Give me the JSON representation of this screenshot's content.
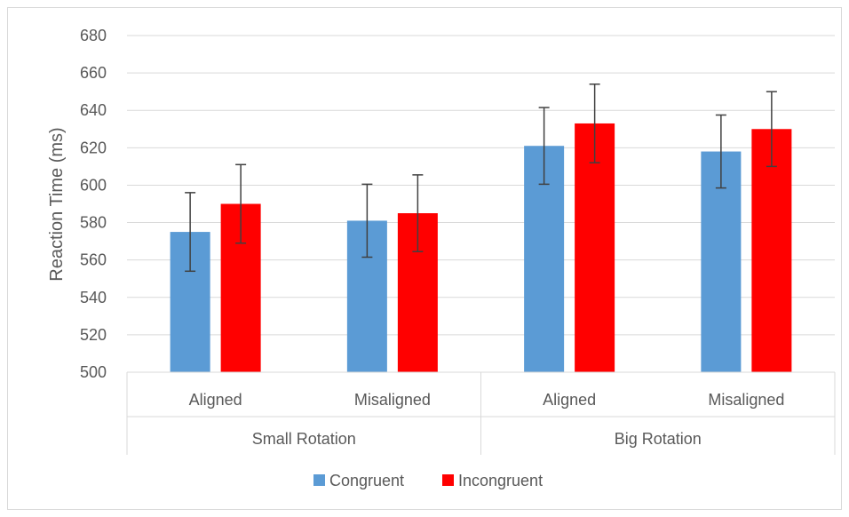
{
  "chart_data": {
    "type": "bar",
    "ylabel": "Reaction Time (ms)",
    "ylim": [
      500,
      680
    ],
    "ytick_step": 20,
    "grid": true,
    "legend_position": "bottom",
    "groups": [
      {
        "label": "Small Rotation",
        "categories": [
          "Aligned",
          "Misaligned"
        ]
      },
      {
        "label": "Big Rotation",
        "categories": [
          "Aligned",
          "Misaligned"
        ]
      }
    ],
    "series": [
      {
        "name": "Congruent",
        "color": "#5b9bd5",
        "values": [
          575,
          581,
          621,
          618
        ],
        "error": [
          21,
          19.5,
          20.5,
          19.5
        ]
      },
      {
        "name": "Incongruent",
        "color": "#ff0000",
        "values": [
          590,
          585,
          633,
          630
        ],
        "error": [
          21,
          20.5,
          21,
          20
        ]
      }
    ]
  }
}
